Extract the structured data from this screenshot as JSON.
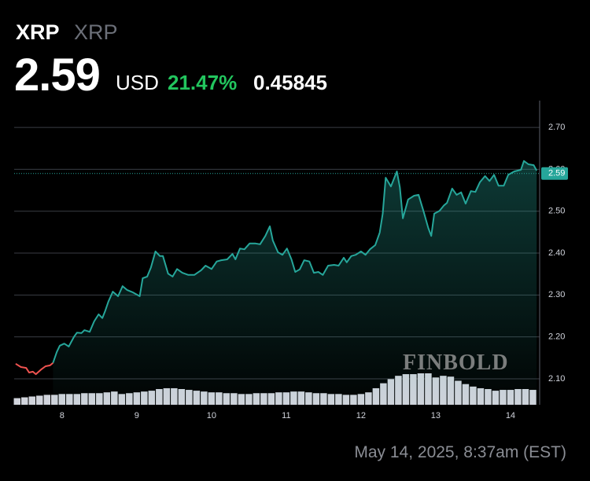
{
  "header": {
    "symbol": "XRP",
    "name": "XRP",
    "price": "2.59",
    "currency": "USD",
    "change_pct": "21.47%",
    "change": "0.45845"
  },
  "watermark": "FINBOLD",
  "timestamp": "May 14, 2025, 8:37am (EST)",
  "chart_data": {
    "type": "line",
    "series": [
      {
        "color": "#ef5350",
        "x": [
          7.38,
          7.45,
          7.52,
          7.56,
          7.61,
          7.65,
          7.72,
          7.78,
          7.84,
          7.88
        ],
        "values": [
          2.136,
          2.128,
          2.126,
          2.115,
          2.117,
          2.111,
          2.122,
          2.13,
          2.132,
          2.138
        ]
      },
      {
        "color": "#26a69a",
        "x": [
          7.88,
          7.93,
          7.97,
          8.03,
          8.09,
          8.16,
          8.2,
          8.26,
          8.3,
          8.37,
          8.43,
          8.49,
          8.54,
          8.58,
          8.62,
          8.68,
          8.75,
          8.81,
          8.87,
          8.95,
          9.04,
          9.08,
          9.14,
          9.19,
          9.25,
          9.31,
          9.35,
          9.42,
          9.48,
          9.54,
          9.61,
          9.69,
          9.77,
          9.86,
          9.92,
          10.0,
          10.07,
          10.13,
          10.21,
          10.28,
          10.32,
          10.38,
          10.44,
          10.51,
          10.59,
          10.65,
          10.72,
          10.78,
          10.82,
          10.89,
          10.95,
          11.01,
          11.07,
          11.12,
          11.18,
          11.24,
          11.31,
          11.37,
          11.43,
          11.49,
          11.56,
          11.64,
          11.7,
          11.77,
          11.81,
          11.87,
          11.93,
          12.0,
          12.06,
          12.12,
          12.19,
          12.25,
          12.29,
          12.33,
          12.4,
          12.48,
          12.52,
          12.56,
          12.63,
          12.71,
          12.77,
          12.84,
          12.9,
          12.94,
          12.98,
          13.05,
          13.11,
          13.15,
          13.22,
          13.28,
          13.34,
          13.4,
          13.47,
          13.53,
          13.59,
          13.66,
          13.72,
          13.78,
          13.84,
          13.91,
          13.97,
          14.05,
          14.14,
          14.18,
          14.24,
          14.31,
          14.35
        ],
        "values": [
          2.138,
          2.164,
          2.179,
          2.184,
          2.177,
          2.2,
          2.21,
          2.209,
          2.216,
          2.212,
          2.237,
          2.254,
          2.245,
          2.263,
          2.284,
          2.308,
          2.297,
          2.321,
          2.312,
          2.306,
          2.297,
          2.34,
          2.344,
          2.366,
          2.404,
          2.393,
          2.393,
          2.351,
          2.344,
          2.362,
          2.353,
          2.348,
          2.348,
          2.359,
          2.37,
          2.362,
          2.38,
          2.383,
          2.385,
          2.398,
          2.385,
          2.411,
          2.409,
          2.423,
          2.423,
          2.421,
          2.441,
          2.464,
          2.43,
          2.402,
          2.396,
          2.411,
          2.385,
          2.355,
          2.361,
          2.383,
          2.38,
          2.353,
          2.355,
          2.348,
          2.37,
          2.372,
          2.37,
          2.389,
          2.378,
          2.393,
          2.396,
          2.404,
          2.396,
          2.409,
          2.419,
          2.449,
          2.494,
          2.58,
          2.559,
          2.595,
          2.557,
          2.483,
          2.528,
          2.537,
          2.539,
          2.498,
          2.46,
          2.441,
          2.494,
          2.501,
          2.514,
          2.52,
          2.554,
          2.539,
          2.545,
          2.518,
          2.548,
          2.546,
          2.569,
          2.584,
          2.572,
          2.587,
          2.561,
          2.561,
          2.587,
          2.595,
          2.599,
          2.62,
          2.612,
          2.61,
          2.597
        ]
      }
    ],
    "last_price": 2.59,
    "volume_color": "#d1d4dc",
    "volume_x": [
      7.4,
      7.5,
      7.6,
      7.7,
      7.8,
      7.9,
      8.0,
      8.1,
      8.2,
      8.3,
      8.4,
      8.5,
      8.6,
      8.7,
      8.8,
      8.9,
      9.0,
      9.1,
      9.2,
      9.3,
      9.4,
      9.5,
      9.6,
      9.7,
      9.8,
      9.9,
      10.0,
      10.1,
      10.2,
      10.3,
      10.4,
      10.5,
      10.6,
      10.7,
      10.8,
      10.9,
      11.0,
      11.1,
      11.2,
      11.3,
      11.4,
      11.5,
      11.6,
      11.7,
      11.8,
      11.9,
      12.0,
      12.1,
      12.2,
      12.3,
      12.4,
      12.5,
      12.6,
      12.7,
      12.8,
      12.9,
      13.0,
      13.1,
      13.2,
      13.3,
      13.4,
      13.5,
      13.6,
      13.7,
      13.8,
      13.9,
      14.0,
      14.1,
      14.2,
      14.3
    ],
    "volume": [
      8,
      9,
      10,
      11,
      12,
      12,
      13,
      13,
      13,
      14,
      14,
      14,
      15,
      16,
      13,
      14,
      15,
      16,
      17,
      19,
      20,
      20,
      19,
      18,
      17,
      16,
      15,
      15,
      14,
      14,
      13,
      13,
      14,
      14,
      14,
      15,
      15,
      16,
      16,
      15,
      14,
      14,
      13,
      13,
      12,
      12,
      13,
      15,
      20,
      26,
      31,
      35,
      37,
      37,
      38,
      38,
      33,
      35,
      34,
      29,
      25,
      22,
      20,
      19,
      17,
      18,
      18,
      19,
      19,
      18
    ],
    "xlim": [
      7.36,
      14.39
    ],
    "xticks": [
      8,
      9,
      10,
      11,
      12,
      13,
      14
    ],
    "ylim": [
      2.038,
      2.764
    ],
    "yticks": [
      {
        "value": 2.1,
        "label": "2.10"
      },
      {
        "value": 2.2,
        "label": "2.20"
      },
      {
        "value": 2.3,
        "label": "2.30"
      },
      {
        "value": 2.4,
        "label": "2.40"
      },
      {
        "value": 2.5,
        "label": "2.50"
      },
      {
        "value": 2.6,
        "label": "2.60"
      },
      {
        "value": 2.7,
        "label": "2.70"
      }
    ],
    "grid": true
  }
}
